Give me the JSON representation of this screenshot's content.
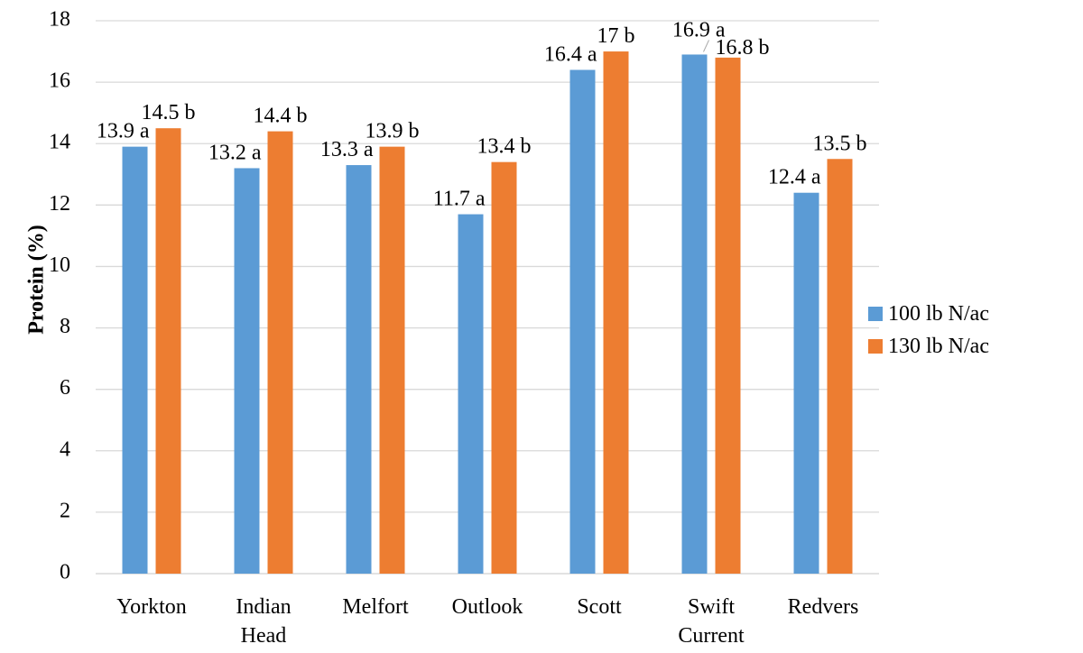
{
  "chart_data": {
    "type": "bar",
    "categories": [
      [
        "Yorkton"
      ],
      [
        "Indian",
        "Head"
      ],
      [
        "Melfort"
      ],
      [
        "Outlook"
      ],
      [
        "Scott"
      ],
      [
        "Swift",
        "Current"
      ],
      [
        "Redvers"
      ]
    ],
    "series": [
      {
        "name": "100 lb N/ac",
        "color": "#5B9BD5",
        "values": [
          13.9,
          13.2,
          13.3,
          11.7,
          16.4,
          16.9,
          12.4
        ],
        "labels": [
          "13.9 a",
          "13.2 a",
          "13.3 a",
          "11.7 a",
          "16.4 a",
          "16.9 a",
          "12.4 a"
        ]
      },
      {
        "name": "130 lb N/ac",
        "color": "#ED7D31",
        "values": [
          14.5,
          14.4,
          13.9,
          13.4,
          17.0,
          16.8,
          13.5
        ],
        "labels": [
          "14.5 b",
          "14.4 b",
          "13.9 b",
          "13.4 b",
          "17 b",
          "16.8 b",
          "13.5 b"
        ]
      }
    ],
    "xlabel": "",
    "ylabel": "Protein (%)",
    "ylim": [
      0,
      18
    ],
    "yticks": [
      0,
      2,
      4,
      6,
      8,
      10,
      12,
      14,
      16,
      18
    ],
    "grid": true,
    "legend_position": "right"
  }
}
